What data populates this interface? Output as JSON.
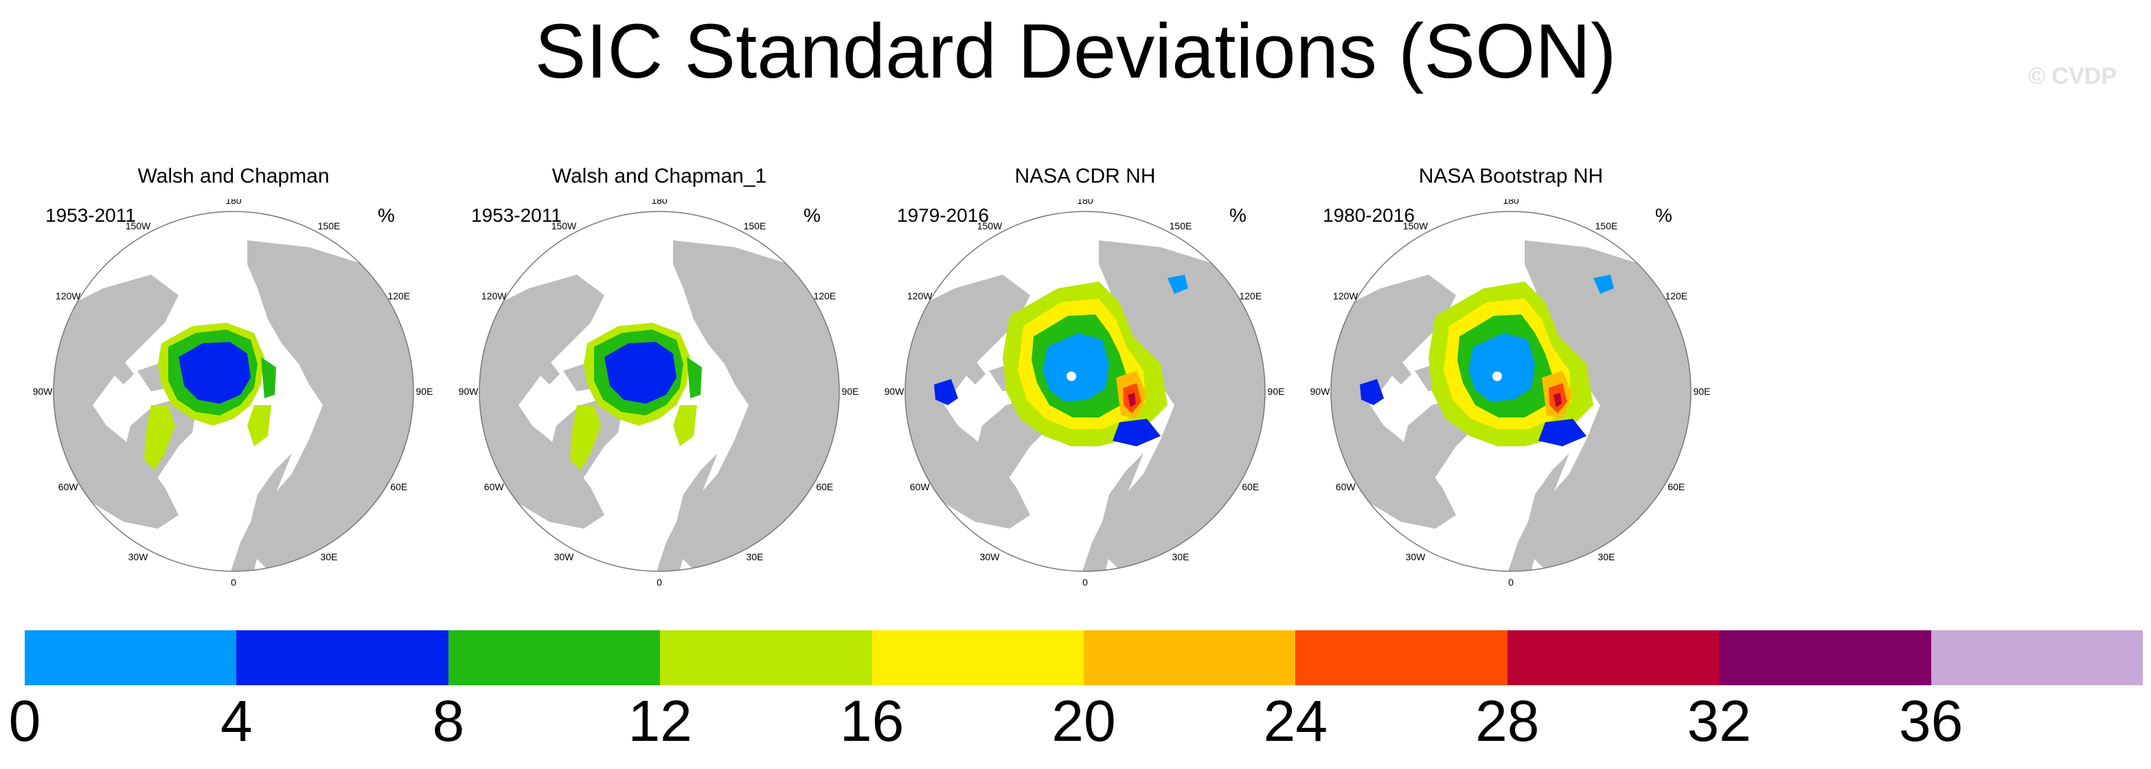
{
  "title": "SIC Standard Deviations (SON)",
  "watermark": "© CVDP",
  "panels": [
    {
      "title": "Walsh and Chapman",
      "period": "1953-2011",
      "unit": "%",
      "variant": "wc"
    },
    {
      "title": "Walsh and Chapman_1",
      "period": "1953-2011",
      "unit": "%",
      "variant": "wc"
    },
    {
      "title": "NASA CDR NH",
      "period": "1979-2016",
      "unit": "%",
      "variant": "cdr"
    },
    {
      "title": "NASA Bootstrap NH",
      "period": "1980-2016",
      "unit": "%",
      "variant": "cdr"
    }
  ],
  "longitude_labels": [
    "180",
    "150E",
    "120E",
    "90E",
    "60E",
    "30E",
    "0",
    "30W",
    "60W",
    "90W",
    "120W",
    "150W"
  ],
  "colorbar": {
    "colors": [
      "#0099ff",
      "#0022ee",
      "#22bb11",
      "#bbe800",
      "#fff000",
      "#ffbb00",
      "#ff4a00",
      "#bb0033",
      "#800066",
      "#c8a8d8"
    ],
    "tick_labels": [
      "0",
      "4",
      "8",
      "12",
      "16",
      "20",
      "24",
      "28",
      "32",
      "36"
    ]
  },
  "land_color": "#bdbdbd"
}
